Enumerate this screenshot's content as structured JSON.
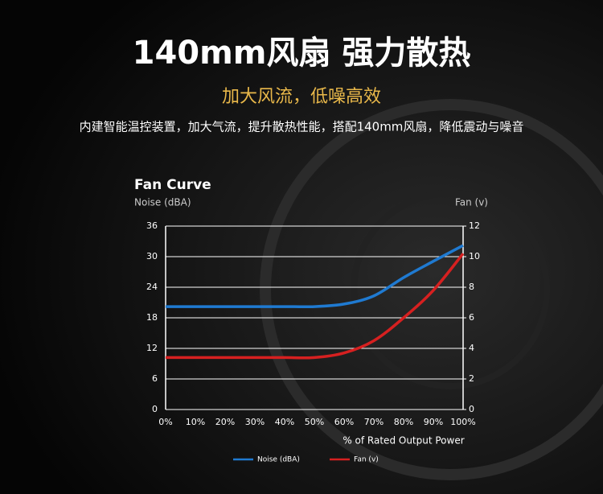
{
  "header": {
    "title": "140mm风扇 强力散热",
    "subtitle": "加大风流，低噪高效",
    "description": "内建智能温控装置，加大气流，提升散热性能，搭配140mm风扇，降低震动与噪音"
  },
  "chart_data": {
    "type": "line",
    "title": "Fan Curve",
    "y_label": "Noise (dBA)",
    "y2_label": "Fan (v)",
    "x_label": "% of Rated Output Power",
    "categories": [
      "0%",
      "10%",
      "20%",
      "30%",
      "40%",
      "50%",
      "60%",
      "70%",
      "80%",
      "90%",
      "100%"
    ],
    "series": [
      {
        "name": "Noise (dBA)",
        "color": "#1f7ad1",
        "values": [
          20.2,
          20.2,
          20.2,
          20.2,
          20.2,
          20.2,
          20.7,
          22.3,
          25.9,
          29.1,
          32.2
        ]
      },
      {
        "name": "Fan (v)",
        "color": "#d62020",
        "axis": "y2",
        "values": [
          3.4,
          3.4,
          3.4,
          3.4,
          3.4,
          3.4,
          3.7,
          4.5,
          6.0,
          7.8,
          10.2
        ]
      }
    ],
    "ylim": [
      0,
      36
    ],
    "yticks": [
      0,
      6,
      12,
      18,
      24,
      30,
      36
    ],
    "y2lim": [
      0,
      12
    ],
    "y2ticks": [
      0,
      2,
      4,
      6,
      8,
      10,
      12
    ],
    "grid": true,
    "legend": "bottom"
  }
}
